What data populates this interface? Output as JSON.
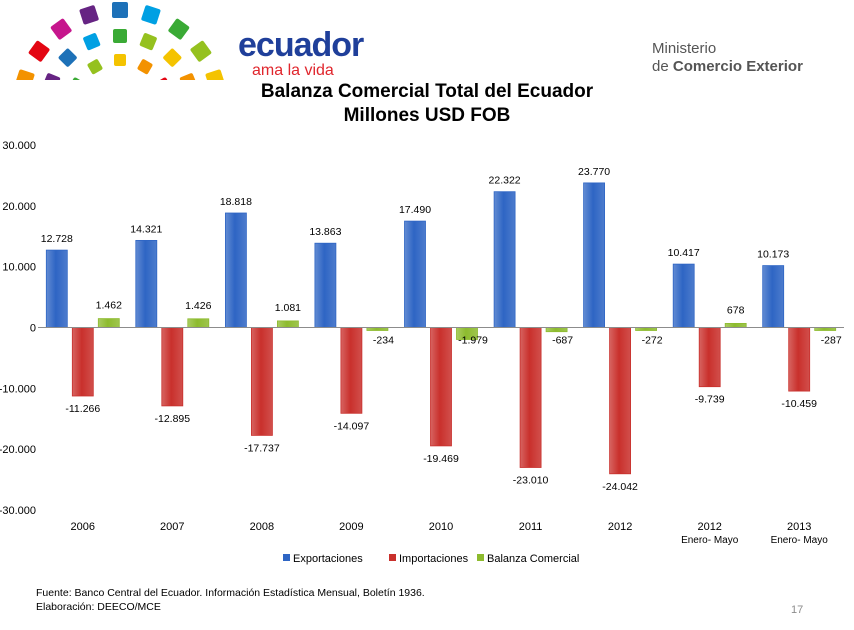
{
  "header": {
    "brand_name": "ecuador",
    "brand_tagline": "ama la vida",
    "ministry_line1": "Ministerio",
    "ministry_line2_prefix": "de",
    "ministry_line2_bold": "Comercio Exterior"
  },
  "chart_data": {
    "type": "bar",
    "title": "Balanza Comercial Total del Ecuador",
    "subtitle": "Millones USD FOB",
    "categories": [
      {
        "line1": "2006",
        "line2": ""
      },
      {
        "line1": "2007",
        "line2": ""
      },
      {
        "line1": "2008",
        "line2": ""
      },
      {
        "line1": "2009",
        "line2": ""
      },
      {
        "line1": "2010",
        "line2": ""
      },
      {
        "line1": "2011",
        "line2": ""
      },
      {
        "line1": "2012",
        "line2": ""
      },
      {
        "line1": "2012",
        "line2": "Enero- Mayo"
      },
      {
        "line1": "2013",
        "line2": "Enero- Mayo"
      }
    ],
    "series": [
      {
        "name": "Exportaciones",
        "color": "#2e65c4",
        "values": [
          12728,
          14321,
          18818,
          13863,
          17490,
          22322,
          23770,
          10417,
          10173
        ],
        "labels": [
          "12.728",
          "14.321",
          "18.818",
          "13.863",
          "17.490",
          "22.322",
          "23.770",
          "10.417",
          "10.173"
        ]
      },
      {
        "name": "Importaciones",
        "color": "#c9302c",
        "values": [
          -11266,
          -12895,
          -17737,
          -14097,
          -19469,
          -23010,
          -24042,
          -9739,
          -10459
        ],
        "labels": [
          "-11.266",
          "-12.895",
          "-17.737",
          "-14.097",
          "-19.469",
          "-23.010",
          "-24.042",
          "-9.739",
          "-10.459"
        ]
      },
      {
        "name": "Balanza Comercial",
        "color": "#8dbb2e",
        "values": [
          1462,
          1426,
          1081,
          -234,
          -1979,
          -687,
          -272,
          678,
          -287
        ],
        "labels": [
          "1.462",
          "1.426",
          "1.081",
          "-234",
          "-1.979",
          "-687",
          "-272",
          "678",
          "-287"
        ]
      }
    ],
    "ylim": [
      -30000,
      30000
    ],
    "yticks": [
      30000,
      20000,
      10000,
      0,
      -10000,
      -20000,
      -30000
    ],
    "ytick_labels": [
      "30.000",
      "20.000",
      "10.000",
      "0",
      "-10.000",
      "-20.000",
      "-30.000"
    ],
    "legend_position": "bottom",
    "grid": false
  },
  "footer": {
    "source": "Fuente: Banco Central del Ecuador. Información Estadística Mensual, Boletín  1936.",
    "elaboration": "Elaboración: DEECO/MCE",
    "page_number": "17"
  }
}
